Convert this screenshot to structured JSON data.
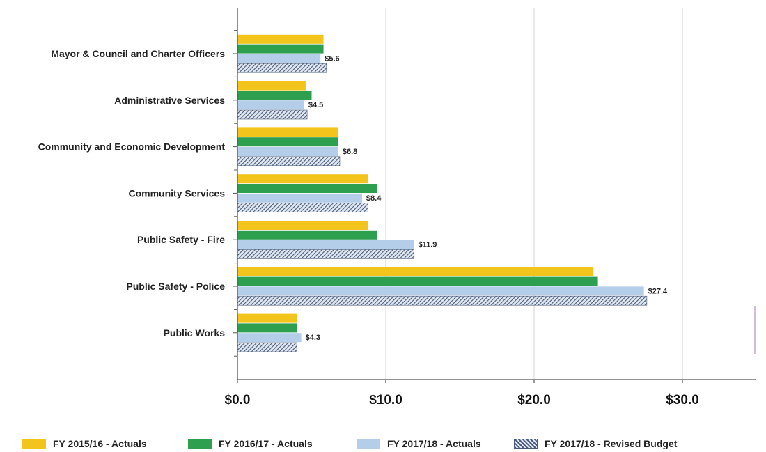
{
  "chart_data": {
    "type": "bar",
    "orientation": "horizontal",
    "title": "",
    "xlabel": "",
    "ylabel": "",
    "xlim": [
      0,
      35
    ],
    "grid": true,
    "legend_position": "bottom",
    "categories": [
      "Mayor & Council and Charter Officers",
      "Administrative Services",
      "Community and Economic Development",
      "Community Services",
      "Public Safety - Fire",
      "Public Safety - Police",
      "Public Works"
    ],
    "x_ticks": [
      0,
      10,
      20,
      30
    ],
    "x_tick_labels": [
      "$0.0",
      "$10.0",
      "$20.0",
      "$30.0"
    ],
    "series": [
      {
        "name": "FY 2015/16 - Actuals",
        "color": "#f2c41c",
        "values": [
          5.8,
          4.6,
          6.8,
          8.8,
          8.8,
          24.0,
          4.0
        ]
      },
      {
        "name": "FY 2016/17 - Actuals",
        "color": "#2e9e4f",
        "values": [
          5.8,
          5.0,
          6.8,
          9.4,
          9.4,
          24.3,
          4.0
        ]
      },
      {
        "name": "FY 2017/18 - Actuals",
        "color": "#b4cde9",
        "values": [
          5.6,
          4.5,
          6.8,
          8.4,
          11.9,
          27.4,
          4.3
        ]
      },
      {
        "name": "FY 2017/18 - Revised Budget",
        "color": "#4a5a78",
        "pattern": "diagonal-hatch",
        "values": [
          6.0,
          4.7,
          6.9,
          8.8,
          11.9,
          27.6,
          4.0
        ]
      }
    ],
    "data_labels": {
      "series_index": 2,
      "labels": [
        "$5.6",
        "$4.5",
        "$6.8",
        "$8.4",
        "$11.9",
        "$27.4",
        "$4.3"
      ]
    }
  },
  "legend": {
    "items": [
      {
        "label": "FY 2015/16 - Actuals",
        "color": "#f2c41c",
        "pattern": "solid"
      },
      {
        "label": "FY 2016/17 - Actuals",
        "color": "#2e9e4f",
        "pattern": "solid"
      },
      {
        "label": "FY 2017/18 - Actuals",
        "color": "#b4cde9",
        "pattern": "solid"
      },
      {
        "label": "FY 2017/18 - Revised Budget",
        "color": "#4a5a78",
        "pattern": "diagonal-hatch"
      }
    ]
  }
}
